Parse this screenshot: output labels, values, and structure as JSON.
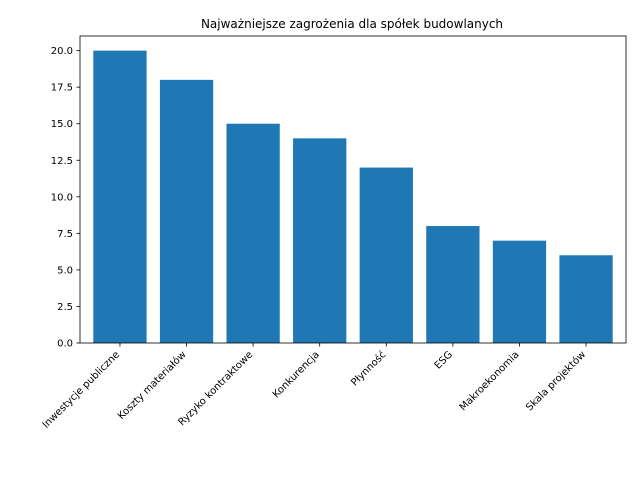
{
  "chart_data": {
    "type": "bar",
    "title": "Najważniejsze zagrożenia dla spółek budowlanych",
    "xlabel": "",
    "ylabel": "",
    "categories": [
      "Inwestycje publiczne",
      "Koszty materiałów",
      "Ryzyko kontraktowe",
      "Konkurencja",
      "Płynność",
      "ESG",
      "Makroekonomia",
      "Skala projektów"
    ],
    "values": [
      20,
      18,
      15,
      14,
      12,
      8,
      7,
      6
    ],
    "ylim": [
      0,
      21
    ],
    "yticks": [
      "0.0",
      "2.5",
      "5.0",
      "7.5",
      "10.0",
      "12.5",
      "15.0",
      "17.5",
      "20.0"
    ],
    "grid": false,
    "bar_color": "#1f77b4"
  }
}
